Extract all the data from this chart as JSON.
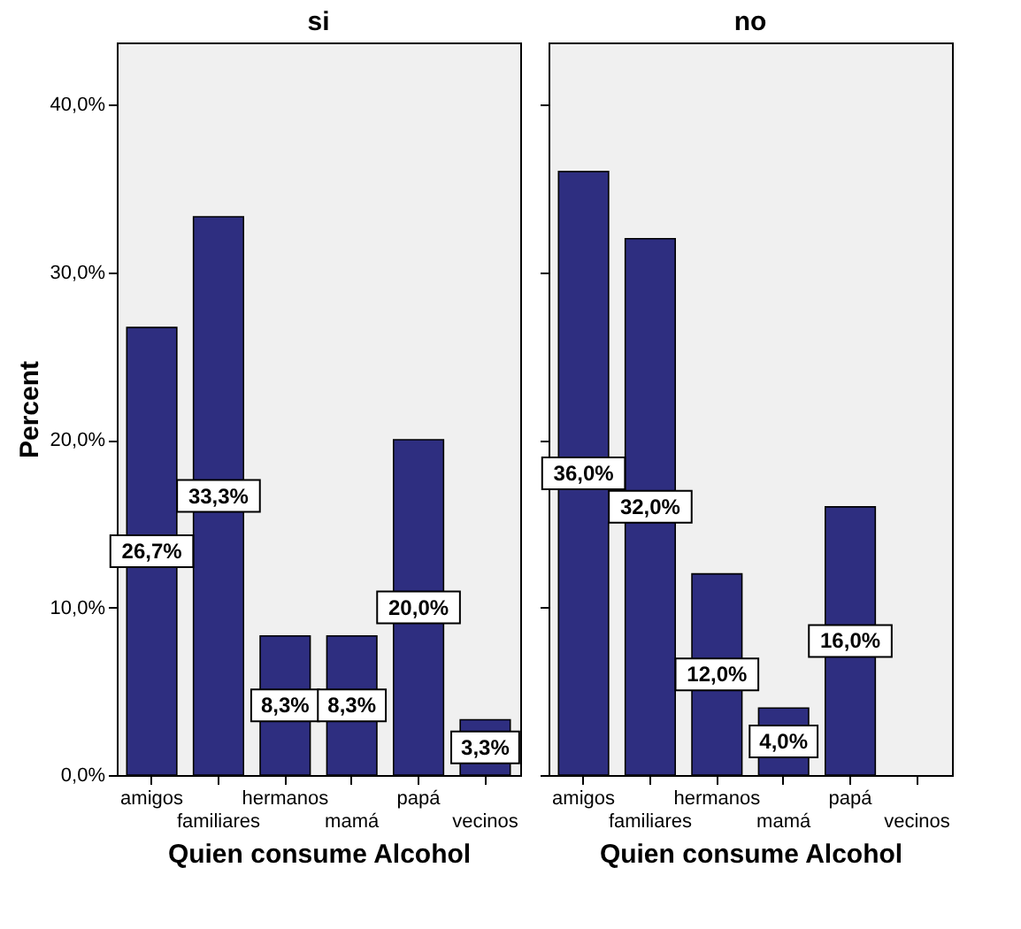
{
  "chart_data": [
    {
      "type": "bar",
      "title": "si",
      "xlabel": "Quien consume Alcohol",
      "ylabel": "Percent",
      "categories": [
        "amigos",
        "familiares",
        "hermanos",
        "mamá",
        "papá",
        "vecinos"
      ],
      "values": [
        26.7,
        33.3,
        8.3,
        8.3,
        20.0,
        3.3
      ],
      "value_labels": [
        "26,7%",
        "33,3%",
        "8,3%",
        "8,3%",
        "20,0%",
        "3,3%"
      ],
      "color": "#2e2e80",
      "ylim": [
        0,
        43.7
      ],
      "yticks": [
        {
          "value": 0,
          "label": "0,0%"
        },
        {
          "value": 10,
          "label": "10,0%"
        },
        {
          "value": 20,
          "label": "20,0%"
        },
        {
          "value": 30,
          "label": "30,0%"
        },
        {
          "value": 40,
          "label": "40,0%"
        }
      ],
      "grid": false
    },
    {
      "type": "bar",
      "title": "no",
      "xlabel": "Quien consume Alcohol",
      "categories": [
        "amigos",
        "familiares",
        "hermanos",
        "mamá",
        "papá",
        "vecinos"
      ],
      "values": [
        36.0,
        32.0,
        12.0,
        4.0,
        16.0,
        null
      ],
      "value_labels": [
        "36,0%",
        "32,0%",
        "12,0%",
        "4,0%",
        "16,0%",
        null
      ],
      "color": "#2e2e80",
      "ylim": [
        0,
        43.7
      ],
      "yticks": [
        {
          "value": 0,
          "label": null
        },
        {
          "value": 10,
          "label": null
        },
        {
          "value": 20,
          "label": null
        },
        {
          "value": 30,
          "label": null
        },
        {
          "value": 40,
          "label": null
        }
      ],
      "tick_labels": "x",
      "grid": false
    }
  ]
}
